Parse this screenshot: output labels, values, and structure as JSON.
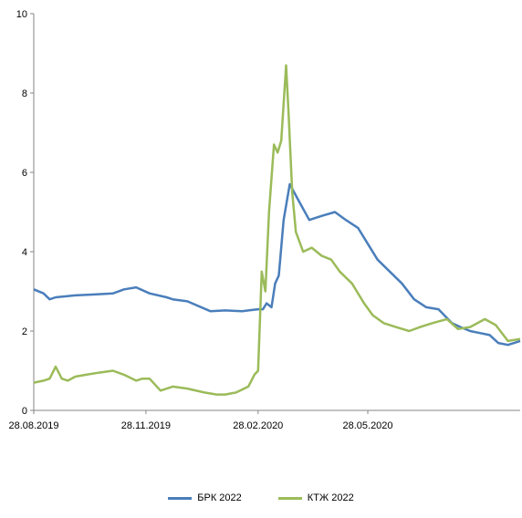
{
  "chart_data": {
    "type": "line",
    "title": "",
    "xlabel": "",
    "ylabel": "",
    "ylim": [
      0,
      10
    ],
    "yticks": [
      "0",
      "2",
      "4",
      "6",
      "8",
      "10"
    ],
    "xticks": [
      "28.08.2019",
      "28.11.2019",
      "28.02.2020",
      "28.05.2020"
    ],
    "grid": false,
    "legend_position": "bottom",
    "series": [
      {
        "name": "БРК 2022",
        "color": "#4a7ebb",
        "x": [
          "2019-08-28",
          "2019-09-05",
          "2019-09-10",
          "2019-09-15",
          "2019-10-01",
          "2019-10-15",
          "2019-11-01",
          "2019-11-10",
          "2019-11-20",
          "2019-12-01",
          "2019-12-15",
          "2019-12-20",
          "2020-01-01",
          "2020-01-20",
          "2020-02-01",
          "2020-02-15",
          "2020-02-20",
          "2020-02-28",
          "2020-03-03",
          "2020-03-06",
          "2020-03-10",
          "2020-03-13",
          "2020-03-16",
          "2020-03-20",
          "2020-03-25",
          "2020-04-01",
          "2020-04-10",
          "2020-04-20",
          "2020-05-01",
          "2020-05-10",
          "2020-05-20",
          "2020-05-28",
          "2020-06-05",
          "2020-06-15",
          "2020-06-25",
          "2020-07-05",
          "2020-07-15",
          "2020-07-25",
          "2020-08-05",
          "2020-08-12",
          "2020-08-20",
          "2020-08-28",
          "2020-09-05",
          "2020-09-12",
          "2020-09-20",
          "2020-09-30"
        ],
        "values": [
          3.05,
          2.95,
          2.8,
          2.85,
          2.9,
          2.92,
          2.95,
          3.05,
          3.1,
          2.95,
          2.85,
          2.8,
          2.75,
          2.5,
          2.52,
          2.5,
          2.52,
          2.55,
          2.55,
          2.7,
          2.6,
          3.2,
          3.4,
          4.8,
          5.7,
          5.3,
          4.8,
          4.9,
          5.0,
          4.8,
          4.6,
          4.2,
          3.8,
          3.5,
          3.2,
          2.8,
          2.6,
          2.55,
          2.2,
          2.1,
          2.0,
          1.95,
          1.9,
          1.7,
          1.65,
          1.75
        ]
      },
      {
        "name": "КТЖ 2022",
        "color": "#9bbb59",
        "x": [
          "2019-08-28",
          "2019-09-05",
          "2019-09-10",
          "2019-09-15",
          "2019-09-20",
          "2019-09-25",
          "2019-10-01",
          "2019-10-10",
          "2019-10-20",
          "2019-11-01",
          "2019-11-10",
          "2019-11-20",
          "2019-11-25",
          "2019-12-01",
          "2019-12-10",
          "2019-12-20",
          "2020-01-01",
          "2020-01-15",
          "2020-01-25",
          "2020-02-01",
          "2020-02-10",
          "2020-02-20",
          "2020-02-25",
          "2020-02-28",
          "2020-03-02",
          "2020-03-05",
          "2020-03-08",
          "2020-03-12",
          "2020-03-15",
          "2020-03-18",
          "2020-03-22",
          "2020-03-24",
          "2020-03-27",
          "2020-03-30",
          "2020-04-05",
          "2020-04-12",
          "2020-04-20",
          "2020-04-28",
          "2020-05-05",
          "2020-05-15",
          "2020-05-25",
          "2020-06-01",
          "2020-06-10",
          "2020-06-20",
          "2020-07-01",
          "2020-07-10",
          "2020-07-20",
          "2020-08-01",
          "2020-08-10",
          "2020-08-20",
          "2020-09-01",
          "2020-09-10",
          "2020-09-20",
          "2020-09-30"
        ],
        "values": [
          0.7,
          0.75,
          0.8,
          1.1,
          0.8,
          0.75,
          0.85,
          0.9,
          0.95,
          1.0,
          0.9,
          0.75,
          0.8,
          0.8,
          0.5,
          0.6,
          0.55,
          0.45,
          0.4,
          0.4,
          0.45,
          0.6,
          0.9,
          1.0,
          3.5,
          3.0,
          5.0,
          6.7,
          6.5,
          6.8,
          8.7,
          7.5,
          5.5,
          4.5,
          4.0,
          4.1,
          3.9,
          3.8,
          3.5,
          3.2,
          2.7,
          2.4,
          2.2,
          2.1,
          2.0,
          2.1,
          2.2,
          2.3,
          2.05,
          2.1,
          2.3,
          2.15,
          1.75,
          1.8
        ]
      }
    ]
  }
}
